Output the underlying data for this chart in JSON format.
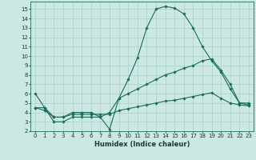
{
  "xlabel": "Humidex (Indice chaleur)",
  "background_color": "#cce8e4",
  "grid_color": "#aacfcb",
  "line_color": "#1a6b5a",
  "xlim": [
    -0.5,
    23.5
  ],
  "ylim": [
    2,
    15.8
  ],
  "xticks": [
    0,
    1,
    2,
    3,
    4,
    5,
    6,
    7,
    8,
    9,
    10,
    11,
    12,
    13,
    14,
    15,
    16,
    17,
    18,
    19,
    20,
    21,
    22,
    23
  ],
  "yticks": [
    2,
    3,
    4,
    5,
    6,
    7,
    8,
    9,
    10,
    11,
    12,
    13,
    14,
    15
  ],
  "series": [
    {
      "x": [
        0,
        1,
        2,
        3,
        4,
        5,
        6,
        7,
        8,
        9,
        10,
        11,
        12,
        13,
        14,
        15,
        16,
        17,
        18,
        19,
        20,
        21,
        22,
        23
      ],
      "y": [
        6,
        4.5,
        3,
        3,
        3.5,
        3.5,
        3.5,
        3.5,
        2.2,
        5.5,
        7.5,
        9.8,
        13,
        15,
        15.3,
        15.1,
        14.5,
        13,
        11,
        9.5,
        8.3,
        6.5,
        5,
        5
      ]
    },
    {
      "x": [
        0,
        1,
        2,
        3,
        4,
        5,
        6,
        7,
        8,
        9,
        10,
        11,
        12,
        13,
        14,
        15,
        16,
        17,
        18,
        19,
        20,
        21,
        22,
        23
      ],
      "y": [
        4.5,
        4.5,
        3.5,
        3.5,
        4,
        4,
        4,
        3.5,
        4,
        5.5,
        6,
        6.5,
        7,
        7.5,
        8,
        8.3,
        8.7,
        9,
        9.5,
        9.7,
        8.5,
        7,
        5,
        4.8
      ]
    },
    {
      "x": [
        0,
        1,
        2,
        3,
        4,
        5,
        6,
        7,
        8,
        9,
        10,
        11,
        12,
        13,
        14,
        15,
        16,
        17,
        18,
        19,
        20,
        21,
        22,
        23
      ],
      "y": [
        4.5,
        4.2,
        3.5,
        3.5,
        3.8,
        3.8,
        3.8,
        3.8,
        3.8,
        4.2,
        4.4,
        4.6,
        4.8,
        5.0,
        5.2,
        5.3,
        5.5,
        5.7,
        5.9,
        6.1,
        5.5,
        5.0,
        4.8,
        4.7
      ]
    }
  ]
}
